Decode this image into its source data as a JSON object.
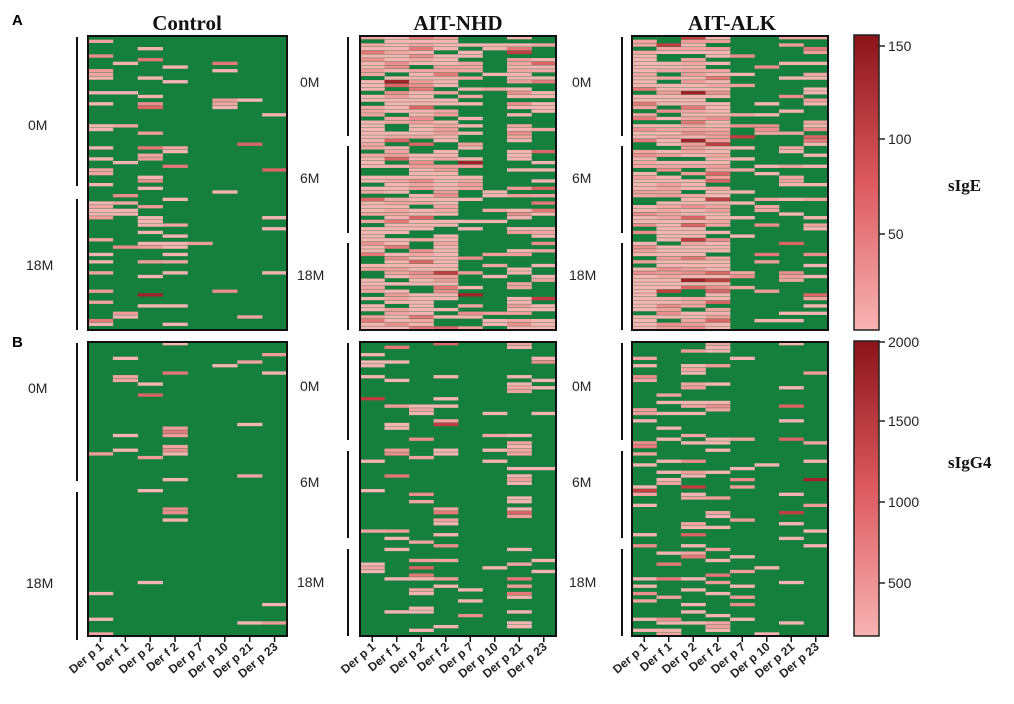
{
  "chart_data": {
    "type": "heatmap",
    "panels": [
      {
        "id": "A",
        "metric": "sIgE",
        "scale_range": [
          0,
          160
        ],
        "ticks": [
          50,
          100,
          150
        ]
      },
      {
        "id": "B",
        "metric": "sIgG4",
        "scale_range": [
          0,
          2000
        ],
        "ticks": [
          500,
          1000,
          1500,
          2000
        ]
      }
    ],
    "groups": [
      "Control",
      "AIT-NHD",
      "AIT-ALK"
    ],
    "columns": [
      "Der p 1",
      "Der f 1",
      "Der p 2",
      "Der f 2",
      "Der p 7",
      "Der p 10",
      "Der p 21",
      "Der p 23"
    ],
    "timepoints_control": [
      "0M",
      "18M"
    ],
    "timepoints_ait": [
      "0M",
      "6M",
      "18M"
    ],
    "colors": {
      "background": "#15803d",
      "low": "#f7b3b3",
      "high": "#8b1418"
    },
    "colorbar_ticks_A": [
      "150",
      "100",
      "50"
    ],
    "colorbar_ticks_B": [
      "2000",
      "1500",
      "1000",
      "500"
    ]
  }
}
